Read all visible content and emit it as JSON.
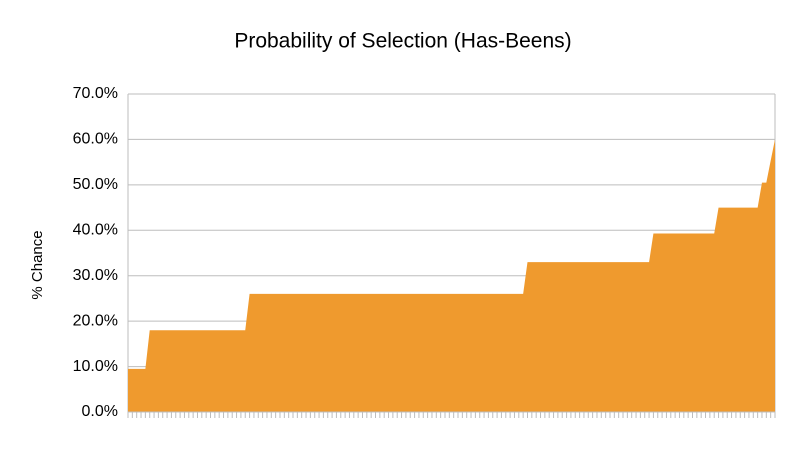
{
  "chart_data": {
    "type": "area",
    "title": "Probability of Selection (Has-Beens)",
    "y_label": "% Chance",
    "color": "#ef9a2e",
    "grid": true,
    "categories": [
      null,
      null,
      null,
      null,
      null,
      null,
      null,
      null,
      null,
      null,
      null,
      null,
      null,
      null,
      null,
      null,
      null,
      null,
      null,
      null,
      null,
      null,
      null,
      null,
      null,
      null,
      null,
      null,
      null,
      null,
      null,
      null,
      null,
      null,
      null,
      null,
      null,
      null,
      null,
      null,
      null,
      null,
      null,
      null,
      null,
      null,
      null,
      null,
      null,
      null,
      null,
      null,
      null,
      null,
      null,
      null,
      null,
      null,
      null,
      null,
      null,
      null,
      null,
      null,
      null,
      null,
      null,
      null,
      null,
      null,
      null,
      null,
      null,
      null,
      null,
      null,
      null,
      null,
      null,
      null,
      null,
      null,
      null,
      null,
      null,
      null,
      null,
      null,
      null,
      null,
      null,
      null,
      null,
      null,
      null,
      null,
      null,
      null,
      null,
      null,
      null,
      null,
      null,
      null,
      null,
      null,
      null,
      null,
      null,
      null,
      null,
      null,
      null,
      null,
      null,
      null,
      null,
      null,
      null,
      null,
      null,
      null,
      null,
      null,
      null,
      null,
      null,
      null,
      null,
      null,
      null,
      null,
      null,
      null,
      null,
      null,
      null,
      null,
      null,
      null,
      null,
      null,
      null,
      null,
      null,
      null,
      null,
      null,
      null,
      null
    ],
    "values": [
      9.5,
      9.5,
      9.5,
      9.5,
      9.5,
      18,
      18,
      18,
      18,
      18,
      18,
      18,
      18,
      18,
      18,
      18,
      18,
      18,
      18,
      18,
      18,
      18,
      18,
      18,
      18,
      18,
      18,
      18,
      26,
      26,
      26,
      26,
      26,
      26,
      26,
      26,
      26,
      26,
      26,
      26,
      26,
      26,
      26,
      26,
      26,
      26,
      26,
      26,
      26,
      26,
      26,
      26,
      26,
      26,
      26,
      26,
      26,
      26,
      26,
      26,
      26,
      26,
      26,
      26,
      26,
      26,
      26,
      26,
      26,
      26,
      26,
      26,
      26,
      26,
      26,
      26,
      26,
      26,
      26,
      26,
      26,
      26,
      26,
      26,
      26,
      26,
      26,
      26,
      26,
      26,
      26,
      26,
      33,
      33,
      33,
      33,
      33,
      33,
      33,
      33,
      33,
      33,
      33,
      33,
      33,
      33,
      33,
      33,
      33,
      33,
      33,
      33,
      33,
      33,
      33,
      33,
      33,
      33,
      33,
      33,
      33,
      39.3,
      39.3,
      39.3,
      39.3,
      39.3,
      39.3,
      39.3,
      39.3,
      39.3,
      39.3,
      39.3,
      39.3,
      39.3,
      39.3,
      39.3,
      45,
      45,
      45,
      45,
      45,
      45,
      45,
      45,
      45,
      45,
      50.5,
      50.5,
      55.3,
      60
    ],
    "ylim": [
      0,
      70
    ],
    "yticks": [
      {
        "value": 0,
        "label": "0.0%"
      },
      {
        "value": 10,
        "label": "10.0%"
      },
      {
        "value": 20,
        "label": "20.0%"
      },
      {
        "value": 30,
        "label": "30.0%"
      },
      {
        "value": 40,
        "label": "40.0%"
      },
      {
        "value": 50,
        "label": "50.0%"
      },
      {
        "value": 60,
        "label": "60.0%"
      },
      {
        "value": 70,
        "label": "70.0%"
      }
    ]
  }
}
